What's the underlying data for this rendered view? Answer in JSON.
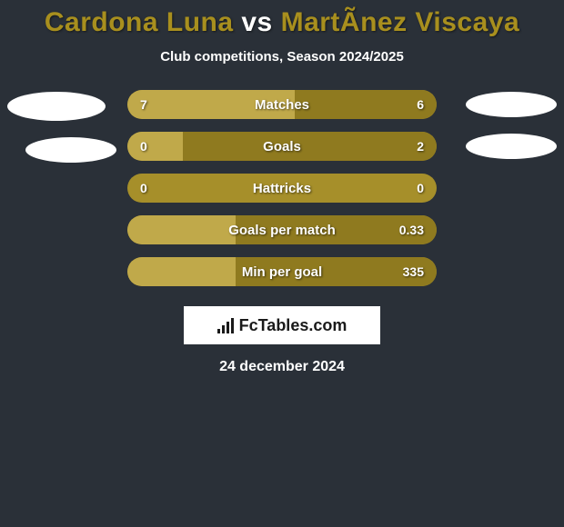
{
  "title": {
    "player_left": "Cardona Luna",
    "vs": " vs ",
    "player_right": "MartÃ­nez Viscaya",
    "color_left": "#a88f1e",
    "color_right": "#a88f1e",
    "color_vs": "#ffffff"
  },
  "subtitle": "Club competitions, Season 2024/2025",
  "colors": {
    "background": "#2a3038",
    "bar_base": "#a68f2a",
    "bar_left_fill": "#c0a94a",
    "bar_right_fill": "#8f7a1f",
    "text": "#ffffff"
  },
  "bars": [
    {
      "label": "Matches",
      "left_val": "7",
      "right_val": "6",
      "left_pct": 54,
      "right_pct": 46
    },
    {
      "label": "Goals",
      "left_val": "0",
      "right_val": "2",
      "left_pct": 18,
      "right_pct": 82
    },
    {
      "label": "Hattricks",
      "left_val": "0",
      "right_val": "0",
      "left_pct": 0,
      "right_pct": 0
    },
    {
      "label": "Goals per match",
      "left_val": "",
      "right_val": "0.33",
      "left_pct": 35,
      "right_pct": 65
    },
    {
      "label": "Min per goal",
      "left_val": "",
      "right_val": "335",
      "left_pct": 35,
      "right_pct": 65
    }
  ],
  "logo": {
    "text": "FcTables.com"
  },
  "date": "24 december 2024"
}
